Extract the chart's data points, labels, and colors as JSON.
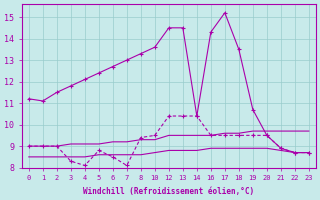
{
  "bg_color": "#c8eaea",
  "line_color": "#aa00aa",
  "grid_color": "#99cccc",
  "xlabel": "Windchill (Refroidissement éolien,°C)",
  "xlim": [
    -0.5,
    20.5
  ],
  "ylim": [
    8,
    15.6
  ],
  "yticks": [
    8,
    9,
    10,
    11,
    12,
    13,
    14,
    15
  ],
  "xtick_positions": [
    0,
    1,
    2,
    3,
    4,
    5,
    6,
    7,
    8,
    9,
    10,
    11,
    12,
    13,
    14,
    15,
    16,
    17,
    18,
    19,
    20
  ],
  "xtick_labels": [
    "0",
    "1",
    "2",
    "3",
    "4",
    "5",
    "6",
    "7",
    "8",
    "10",
    "12",
    "13",
    "14",
    "16",
    "17",
    "18",
    "19",
    "20",
    "21",
    "22",
    "23"
  ],
  "line1_x": [
    0,
    1,
    2,
    3,
    4,
    5,
    6,
    7,
    8,
    9,
    10,
    11,
    12,
    13,
    14,
    15,
    16,
    17,
    18,
    19,
    20
  ],
  "line1_y": [
    11.2,
    11.1,
    11.5,
    11.8,
    12.1,
    12.4,
    12.7,
    13.0,
    13.3,
    13.6,
    14.5,
    14.5,
    10.4,
    14.3,
    15.2,
    13.5,
    10.7,
    9.5,
    8.9,
    8.7,
    8.7
  ],
  "line2_x": [
    0,
    1,
    2,
    3,
    4,
    5,
    6,
    7,
    8,
    9,
    10,
    11,
    12,
    13,
    14,
    15,
    16,
    17,
    18,
    19,
    20
  ],
  "line2_y": [
    9.0,
    9.0,
    9.0,
    8.3,
    8.1,
    8.8,
    8.5,
    8.1,
    9.4,
    9.5,
    10.4,
    10.4,
    10.4,
    9.5,
    9.5,
    9.5,
    9.5,
    9.5,
    8.9,
    8.7,
    8.7
  ],
  "line3_x": [
    0,
    1,
    2,
    3,
    4,
    5,
    6,
    7,
    8,
    9,
    10,
    11,
    12,
    13,
    14,
    15,
    16,
    17,
    18,
    19,
    20
  ],
  "line3_y": [
    9.0,
    9.0,
    9.0,
    9.1,
    9.1,
    9.1,
    9.2,
    9.2,
    9.3,
    9.3,
    9.5,
    9.5,
    9.5,
    9.5,
    9.6,
    9.6,
    9.7,
    9.7,
    9.7,
    9.7,
    9.7
  ],
  "line4_x": [
    0,
    1,
    2,
    3,
    4,
    5,
    6,
    7,
    8,
    9,
    10,
    11,
    12,
    13,
    14,
    15,
    16,
    17,
    18,
    19,
    20
  ],
  "line4_y": [
    8.5,
    8.5,
    8.5,
    8.5,
    8.5,
    8.6,
    8.6,
    8.6,
    8.6,
    8.7,
    8.8,
    8.8,
    8.8,
    8.9,
    8.9,
    8.9,
    8.9,
    8.9,
    8.8,
    8.7,
    8.7
  ]
}
